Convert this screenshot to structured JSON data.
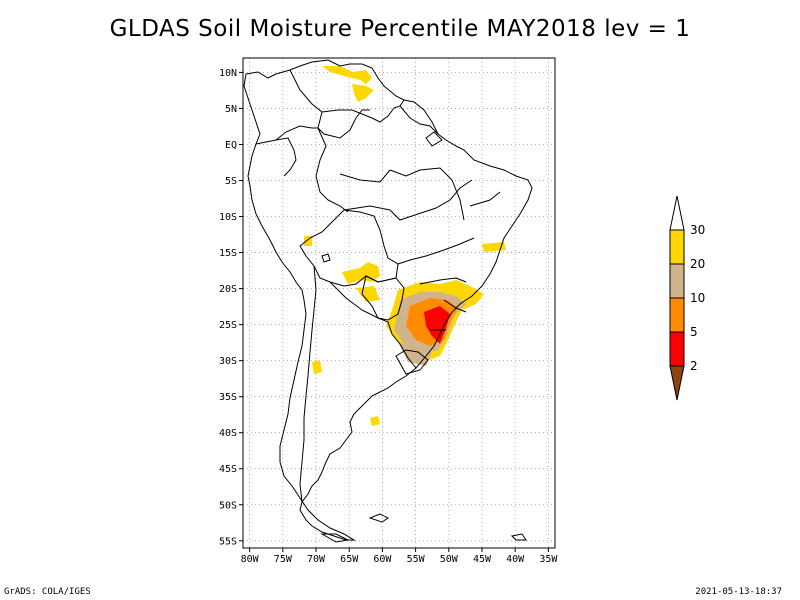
{
  "title": "GLDAS Soil Moisture Percentile MAY2018 lev = 1",
  "footer": {
    "left": "GrADS: COLA/IGES",
    "right": "2021-05-13-18:37"
  },
  "map": {
    "projection": "latlon",
    "lon_range": [
      -81,
      -34
    ],
    "lat_range": [
      -56,
      12
    ],
    "lat_ticks": [
      {
        "value": 10,
        "label": "10N"
      },
      {
        "value": 5,
        "label": "5N"
      },
      {
        "value": 0,
        "label": "EQ"
      },
      {
        "value": -5,
        "label": "5S"
      },
      {
        "value": -10,
        "label": "10S"
      },
      {
        "value": -15,
        "label": "15S"
      },
      {
        "value": -20,
        "label": "20S"
      },
      {
        "value": -25,
        "label": "25S"
      },
      {
        "value": -30,
        "label": "30S"
      },
      {
        "value": -35,
        "label": "35S"
      },
      {
        "value": -40,
        "label": "40S"
      },
      {
        "value": -45,
        "label": "45S"
      },
      {
        "value": -50,
        "label": "50S"
      },
      {
        "value": -55,
        "label": "55S"
      }
    ],
    "lon_ticks": [
      {
        "value": -80,
        "label": "80W"
      },
      {
        "value": -75,
        "label": "75W"
      },
      {
        "value": -70,
        "label": "70W"
      },
      {
        "value": -65,
        "label": "65W"
      },
      {
        "value": -60,
        "label": "60W"
      },
      {
        "value": -55,
        "label": "55W"
      },
      {
        "value": -50,
        "label": "50W"
      },
      {
        "value": -45,
        "label": "45W"
      },
      {
        "value": -40,
        "label": "40W"
      },
      {
        "value": -35,
        "label": "35W"
      }
    ],
    "grid": true
  },
  "colorbar": {
    "bins": [
      {
        "label": "30",
        "color": "#ffffff"
      },
      {
        "label": "20",
        "color": "#ffd700"
      },
      {
        "label": "10",
        "color": "#d2b48c"
      },
      {
        "label": "5",
        "color": "#ff8c00"
      },
      {
        "label": "2",
        "color": "#ff0000"
      },
      {
        "label": "",
        "color": "#8b4513"
      }
    ]
  }
}
